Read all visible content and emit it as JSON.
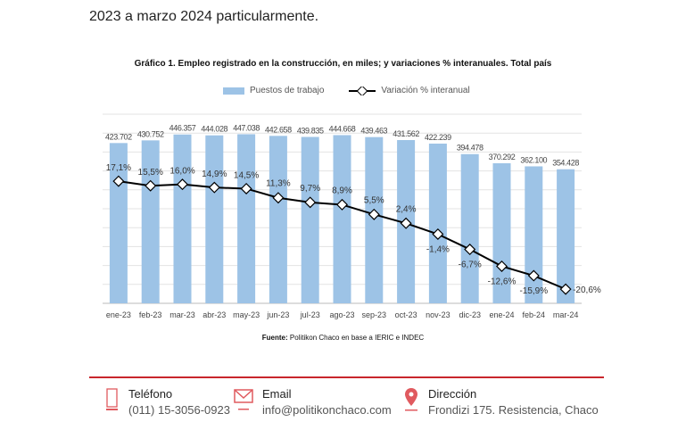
{
  "intro_text": "2023 a marzo 2024 particularmente.",
  "chart_data": {
    "type": "bar+line",
    "title": "Gráfico 1. Empleo registrado en la construcción, en miles; y variaciones % interanuales. Total país",
    "categories": [
      "ene-23",
      "feb-23",
      "mar-23",
      "abr-23",
      "may-23",
      "jun-23",
      "jul-23",
      "ago-23",
      "sep-23",
      "oct-23",
      "nov-23",
      "dic-23",
      "ene-24",
      "feb-24",
      "mar-24"
    ],
    "series": [
      {
        "name": "Puestos de trabajo",
        "type": "bar",
        "color": "#9dc3e6",
        "values": [
          423.702,
          430.752,
          446.357,
          444.028,
          447.038,
          442.658,
          439.835,
          444.668,
          439.463,
          431.562,
          422.239,
          394.478,
          370.292,
          362.1,
          354.428
        ],
        "labels": [
          "423.702",
          "430.752",
          "446.357",
          "444.028",
          "447.038",
          "442.658",
          "439.835",
          "444.668",
          "439.463",
          "431.562",
          "422.239",
          "394.478",
          "370.292",
          "362.100",
          "354.428"
        ]
      },
      {
        "name": "Variación % interanual",
        "type": "line",
        "color": "#000000",
        "values": [
          17.1,
          15.5,
          16.0,
          14.9,
          14.5,
          11.3,
          9.7,
          8.9,
          5.5,
          2.4,
          -1.4,
          -6.7,
          -12.6,
          -15.9,
          -20.6
        ],
        "labels": [
          "17,1%",
          "15,5%",
          "16,0%",
          "14,9%",
          "14,5%",
          "11,3%",
          "9,7%",
          "8,9%",
          "5,5%",
          "2,4%",
          "-1,4%",
          "-6,7%",
          "-12,6%",
          "-15,9%",
          "-20,6%"
        ]
      }
    ],
    "ylim": [
      0,
      500
    ],
    "grid": true,
    "legend": "top",
    "source_label": "Fuente:",
    "source_text": "Politikon Chaco en base a IERIC e INDEC"
  },
  "footer": {
    "accent": "#c8262c",
    "phone": {
      "label": "Teléfono",
      "value": "(011) 15-3056-0923",
      "icon": "phone-icon"
    },
    "email": {
      "label": "Email",
      "value": "info@politikonchaco.com",
      "icon": "mail-icon"
    },
    "address": {
      "label": "Dirección",
      "value": "Frondizi 175. Resistencia, Chaco",
      "icon": "location-pin-icon"
    }
  }
}
